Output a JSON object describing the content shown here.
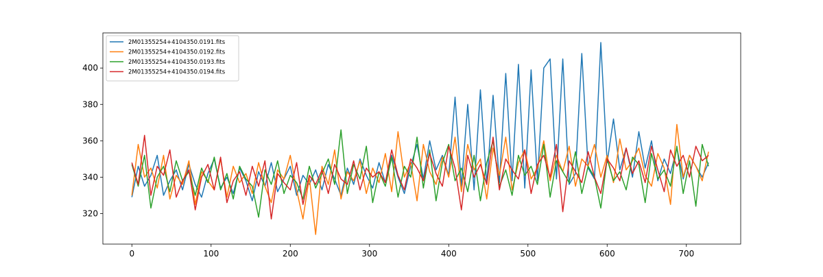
{
  "chart_data": {
    "type": "line",
    "x": [
      0,
      8,
      16,
      24,
      32,
      40,
      48,
      56,
      64,
      72,
      80,
      88,
      96,
      104,
      112,
      120,
      128,
      136,
      144,
      152,
      160,
      168,
      176,
      184,
      192,
      200,
      208,
      216,
      224,
      232,
      240,
      248,
      256,
      264,
      272,
      280,
      288,
      296,
      304,
      312,
      320,
      328,
      336,
      344,
      352,
      360,
      368,
      376,
      384,
      392,
      400,
      408,
      416,
      424,
      432,
      440,
      448,
      456,
      464,
      472,
      480,
      488,
      496,
      504,
      512,
      520,
      528,
      536,
      544,
      552,
      560,
      568,
      576,
      584,
      592,
      600,
      608,
      616,
      624,
      632,
      640,
      648,
      656,
      664,
      672,
      680,
      688,
      696,
      704,
      712,
      720,
      728
    ],
    "series": [
      {
        "name": "2M01355254+4104350.0191.fits",
        "color": "#1f77b4",
        "values": [
          329,
          346,
          335,
          341,
          352,
          330,
          338,
          344,
          333,
          347,
          336,
          329,
          342,
          350,
          334,
          340,
          331,
          345,
          338,
          327,
          343,
          335,
          348,
          332,
          339,
          346,
          330,
          341,
          336,
          344,
          333,
          347,
          339,
          330,
          345,
          336,
          350,
          341,
          334,
          348,
          337,
          352,
          340,
          331,
          346,
          358,
          339,
          360,
          344,
          352,
          341,
          384,
          335,
          380,
          333,
          388,
          336,
          385,
          337,
          397,
          338,
          402,
          334,
          399,
          338,
          400,
          405,
          339,
          405,
          336,
          342,
          408,
          345,
          339,
          414,
          348,
          372,
          344,
          356,
          340,
          365,
          345,
          360,
          338,
          350,
          342,
          356,
          339,
          352,
          346,
          340,
          348
        ]
      },
      {
        "name": "2M01355254+4104350.0192.fits",
        "color": "#ff7f0e",
        "values": [
          330,
          358,
          340,
          345,
          334,
          352,
          328,
          341,
          336,
          349,
          325,
          343,
          338,
          333,
          350,
          329,
          346,
          337,
          342,
          331,
          348,
          335,
          326,
          344,
          339,
          352,
          333,
          317,
          340,
          308.5,
          346,
          336,
          355,
          328,
          343,
          338,
          349,
          331,
          345,
          337,
          353,
          332,
          365,
          340,
          348,
          327,
          358,
          343,
          336,
          351,
          340,
          362,
          332,
          358,
          344,
          350,
          328,
          356,
          341,
          362,
          333,
          348,
          355,
          339,
          345,
          360,
          338,
          352,
          343,
          357,
          335,
          350,
          346,
          358,
          340,
          352,
          337,
          361,
          344,
          349,
          356,
          341,
          335,
          353,
          345,
          325,
          369,
          340,
          352,
          346,
          338,
          354
        ]
      },
      {
        "name": "2M01355254+4104350.0193.fits",
        "color": "#2ca02c",
        "values": [
          347,
          335,
          352,
          323,
          340,
          346,
          332,
          349,
          338,
          343,
          330,
          345,
          337,
          351,
          333,
          342,
          328,
          346,
          339,
          335,
          318,
          344,
          336,
          349,
          331,
          341,
          337,
          328,
          346,
          334,
          342,
          350,
          336,
          366,
          331,
          347,
          339,
          357,
          326,
          343,
          335,
          351,
          329,
          346,
          340,
          362,
          334,
          355,
          327,
          348,
          358,
          338,
          345,
          332,
          352,
          327,
          348,
          360,
          335,
          344,
          330,
          352,
          341,
          346,
          336,
          358,
          329,
          349,
          343,
          337,
          354,
          331,
          346,
          340,
          323,
          350,
          338,
          343,
          333,
          351,
          347,
          326,
          353,
          339,
          344,
          335,
          357,
          331,
          349,
          324,
          358,
          346
        ]
      },
      {
        "name": "2M01355254+4104350.0194.fits",
        "color": "#d62728",
        "values": [
          348,
          336,
          363,
          330,
          346,
          341,
          355,
          329,
          338,
          344,
          322,
          340,
          347,
          333,
          351,
          326,
          338,
          343,
          330,
          346,
          335,
          349,
          317,
          342,
          337,
          333,
          348,
          325,
          341,
          336,
          344,
          331,
          347,
          339,
          336,
          349,
          333,
          345,
          340,
          343,
          337,
          355,
          341,
          333,
          350,
          345,
          338,
          353,
          342,
          335,
          357,
          345,
          322,
          352,
          340,
          347,
          336,
          362,
          333,
          350,
          344,
          339,
          355,
          331,
          347,
          352,
          340,
          358,
          321,
          349,
          343,
          337,
          354,
          340,
          331,
          350,
          345,
          338,
          356,
          342,
          349,
          337,
          357,
          344,
          332,
          355,
          346,
          352,
          340,
          357,
          349,
          352
        ]
      }
    ],
    "xlim": [
      -36.6,
      768.6
    ],
    "ylim": [
      303.2,
      419.3
    ],
    "xticks": [
      0,
      100,
      200,
      300,
      400,
      500,
      600,
      700
    ],
    "yticks": [
      320,
      340,
      360,
      380,
      400
    ],
    "legend": "upper left"
  }
}
